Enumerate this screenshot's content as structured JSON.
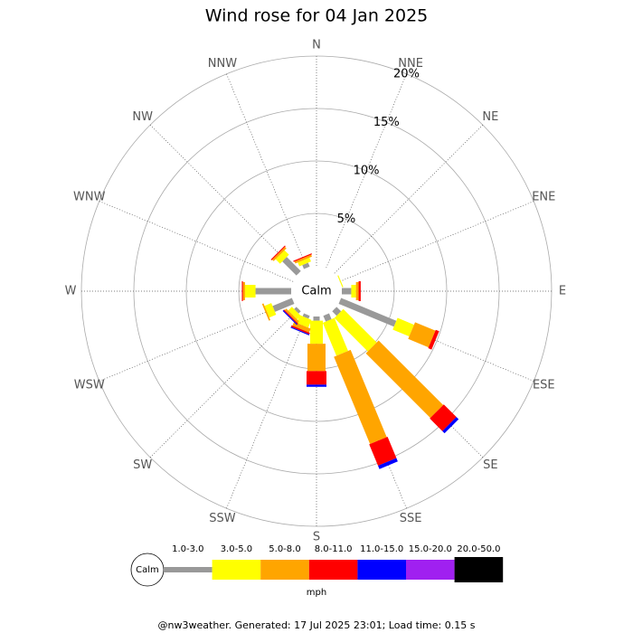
{
  "chart_data": {
    "type": "windrose",
    "title": "Wind rose for 04 Jan 2025",
    "center_label": "Calm",
    "categories": [
      "N",
      "NNE",
      "NE",
      "ENE",
      "E",
      "ESE",
      "SE",
      "SSE",
      "S",
      "SSW",
      "SW",
      "WSW",
      "W",
      "WNW",
      "NW",
      "NNW"
    ],
    "series": [
      {
        "name": "1.0-3.0",
        "color": "#999999",
        "values": [
          0,
          0,
          0,
          0,
          0.9,
          5.7,
          0.6,
          0.6,
          0.4,
          0.3,
          0.3,
          2.0,
          3.4,
          0,
          1.9,
          0.4
        ]
      },
      {
        "name": "3.0-5.0",
        "color": "#ffff00",
        "values": [
          0,
          0,
          0,
          0.1,
          0.45,
          1.7,
          4.5,
          3.4,
          2.2,
          0.8,
          0.5,
          0.7,
          1.0,
          0,
          0.6,
          0.4
        ]
      },
      {
        "name": "5.0-8.0",
        "color": "#ffa500",
        "values": [
          0,
          0,
          0,
          0,
          0.25,
          2.1,
          8.7,
          9.0,
          2.6,
          0.4,
          0.2,
          0.15,
          0.2,
          0,
          0.2,
          0.2
        ]
      },
      {
        "name": "8.0-11.0",
        "color": "#ff0000",
        "values": [
          0,
          0,
          0,
          0,
          0.2,
          0.35,
          1.7,
          2.2,
          1.3,
          0.15,
          0.1,
          0,
          0.1,
          0,
          0.1,
          0.1
        ]
      },
      {
        "name": "11.0-15.0",
        "color": "#0000ff",
        "values": [
          0,
          0,
          0,
          0,
          0,
          0,
          0.3,
          0.35,
          0.2,
          0.1,
          0.1,
          0,
          0,
          0,
          0,
          0
        ]
      },
      {
        "name": "15.0-20.0",
        "color": "#a020f0",
        "values": [
          0,
          0,
          0,
          0,
          0,
          0,
          0,
          0,
          0,
          0,
          0,
          0,
          0,
          0,
          0,
          0
        ]
      },
      {
        "name": "20.0-50.0",
        "color": "#000000",
        "values": [
          0,
          0,
          0,
          0,
          0,
          0,
          0,
          0,
          0,
          0,
          0,
          0,
          0,
          0,
          0,
          0
        ]
      }
    ],
    "ylim": [
      0,
      20
    ],
    "yticks": [
      {
        "value": 5,
        "label": "5%"
      },
      {
        "value": 10,
        "label": "10%"
      },
      {
        "value": 15,
        "label": "15%"
      },
      {
        "value": 20,
        "label": "20%"
      }
    ],
    "legend_unit": "mph",
    "footer": "@nw3weather. Generated: 17 Jul 2025 23:01; Load time: 0.15 s"
  }
}
